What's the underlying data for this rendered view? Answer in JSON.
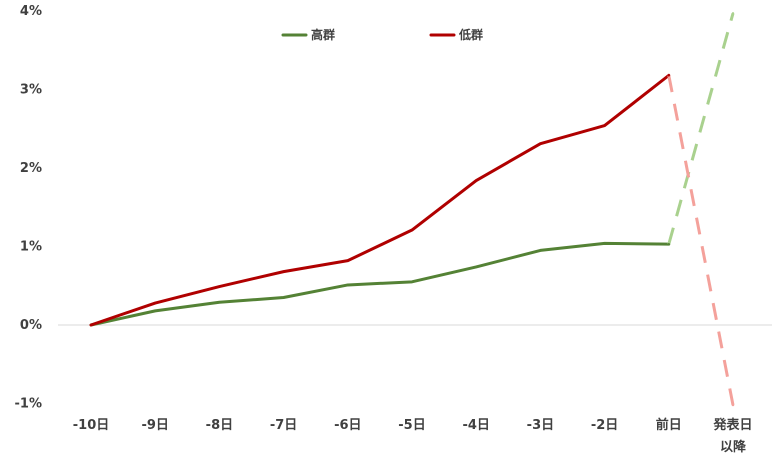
{
  "chart_data": {
    "type": "line",
    "x": [
      "-10日",
      "-9日",
      "-8日",
      "-7日",
      "-6日",
      "-5日",
      "-4日",
      "-3日",
      "-2日",
      "前日",
      "発表日以降"
    ],
    "x_tick_labels": [
      [
        "-10日"
      ],
      [
        "-9日"
      ],
      [
        "-8日"
      ],
      [
        "-7日"
      ],
      [
        "-6日"
      ],
      [
        "-5日"
      ],
      [
        "-4日"
      ],
      [
        "-3日"
      ],
      [
        "-2日"
      ],
      [
        "前日"
      ],
      [
        "発表日",
        "以降"
      ]
    ],
    "y_ticks": [
      {
        "value": 4,
        "label": "4%"
      },
      {
        "value": 3,
        "label": "3%"
      },
      {
        "value": 2,
        "label": "2%"
      },
      {
        "value": 1,
        "label": "1%"
      },
      {
        "value": 0,
        "label": "0%"
      },
      {
        "value": -1,
        "label": "-1%"
      }
    ],
    "ylim": [
      -1,
      4
    ],
    "grid": false,
    "legend_position": "top-center",
    "series": [
      {
        "name": "高群",
        "color": "#548235",
        "dashed_color": "#a9d18e",
        "values": [
          0.0,
          0.18,
          0.29,
          0.35,
          0.51,
          0.55,
          0.74,
          0.95,
          1.04,
          1.03,
          3.97
        ]
      },
      {
        "name": "低群",
        "color": "#b00000",
        "dashed_color": "#f4a19b",
        "values": [
          0.0,
          0.28,
          0.49,
          0.68,
          0.82,
          1.21,
          1.84,
          2.31,
          2.54,
          3.18,
          -1.02
        ]
      }
    ]
  }
}
